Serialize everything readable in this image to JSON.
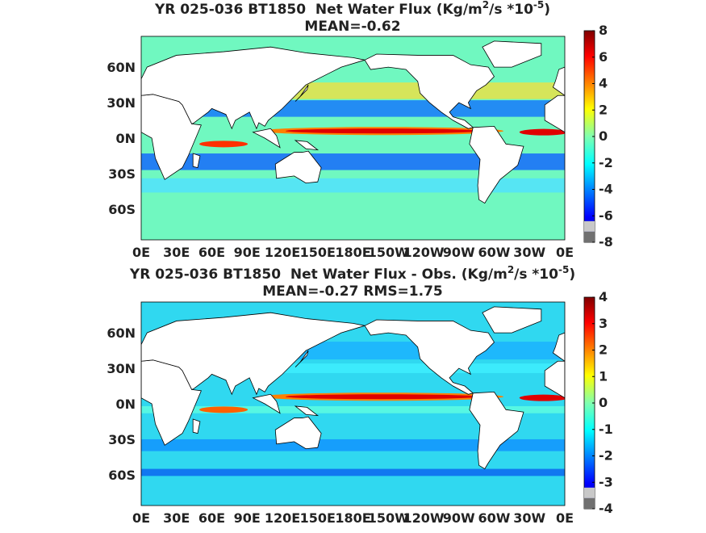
{
  "panels": [
    {
      "title": {
        "parts": [
          "YR 025-036 BT1850  Net Water Flux (Kg/m",
          "2",
          "/s *10",
          "-5",
          ")"
        ]
      },
      "subtitle": "MEAN=-0.62",
      "lat_labels": [
        "60N",
        "30N",
        "0N",
        "30S",
        "60S"
      ],
      "lon_labels": [
        "0E",
        "30E",
        "60E",
        "90E",
        "120E",
        "150E",
        "180E",
        "150W",
        "120W",
        "90W",
        "60W",
        "30W",
        "0E"
      ],
      "colorbar": {
        "lim": [
          -8,
          8
        ],
        "ticks": [
          8,
          6,
          4,
          2,
          0,
          -2,
          -4,
          -6,
          -8
        ]
      }
    },
    {
      "title": {
        "parts": [
          "YR 025-036 BT1850  Net Water Flux - Obs. (Kg/m",
          "2",
          "/s *10",
          "-5",
          ")"
        ]
      },
      "subtitle": "MEAN=-0.27 RMS=1.75",
      "lat_labels": [
        "60N",
        "30N",
        "0N",
        "30S",
        "60S"
      ],
      "lon_labels": [
        "0E",
        "30E",
        "60E",
        "90E",
        "120E",
        "150E",
        "180E",
        "150W",
        "120W",
        "90W",
        "60W",
        "30W",
        "0E"
      ],
      "colorbar": {
        "lim": [
          -4,
          4
        ],
        "ticks": [
          4,
          3,
          2,
          1,
          0,
          -1,
          -2,
          -3,
          -4
        ]
      }
    }
  ]
}
